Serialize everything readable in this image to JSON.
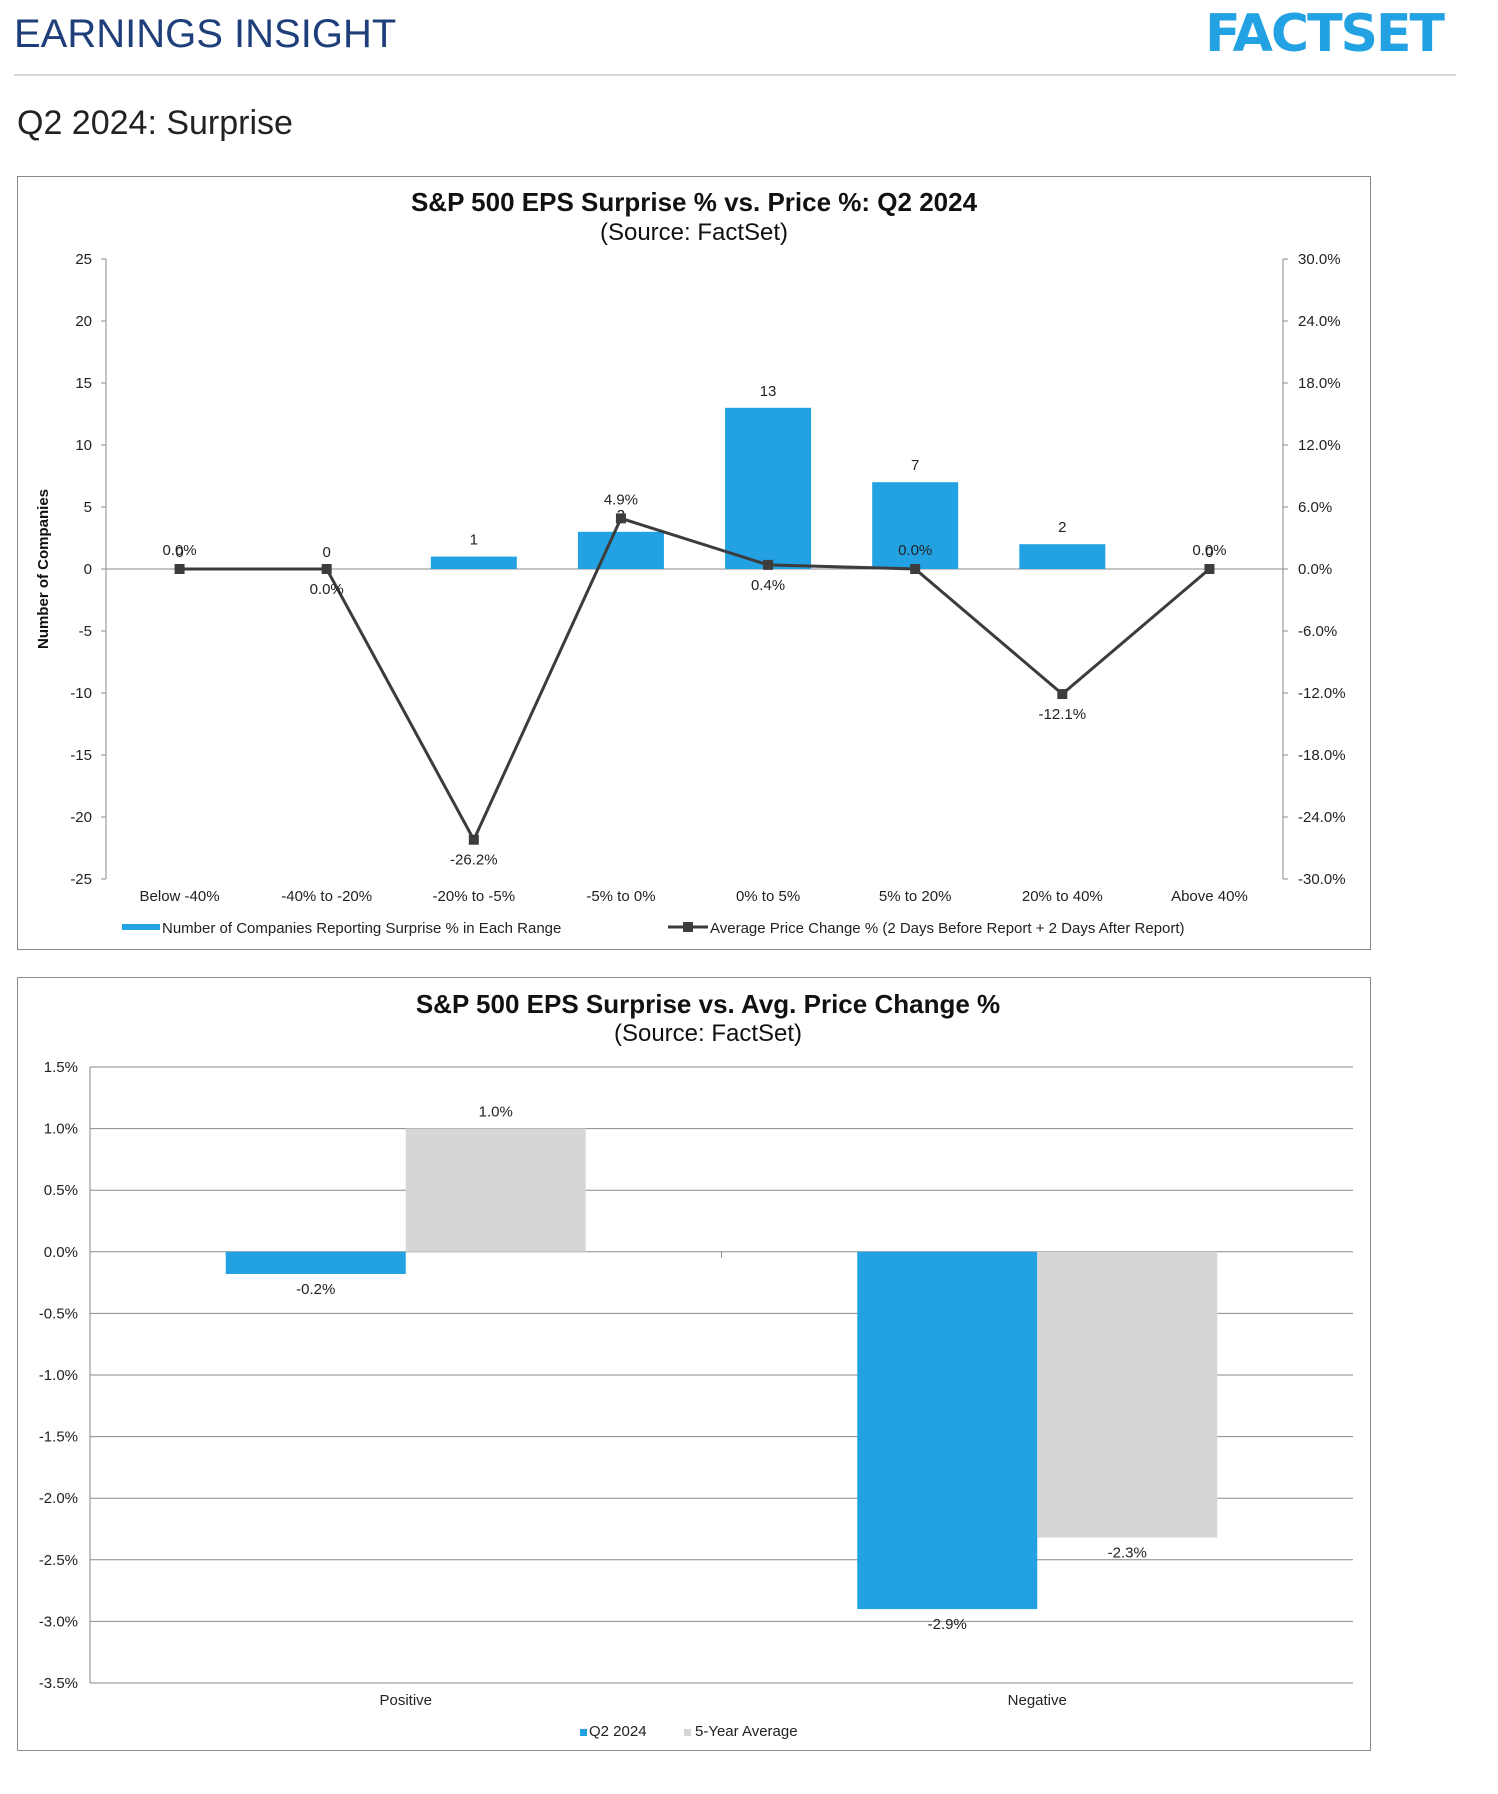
{
  "header": {
    "title": "EARNINGS INSIGHT",
    "brand": "FACTSET",
    "section_title": "Q2 2024: Surprise"
  },
  "colors": {
    "blue": "#22a2e2",
    "gray": "#d6d6d6",
    "line": "#3c3c3c",
    "title_blue": "#1f3f7a"
  },
  "chart_data": [
    {
      "type": "bar",
      "title": "S&P 500 EPS Surprise % vs. Price %: Q2 2024",
      "subtitle": "(Source: FactSet)",
      "ylabel": "Number of Companies",
      "categories": [
        "Below -40%",
        "-40% to -20%",
        "-20% to -5%",
        "-5% to 0%",
        "0% to 5%",
        "5% to 20%",
        "20% to 40%",
        "Above 40%"
      ],
      "ylim": [
        -25,
        25
      ],
      "y_ticks": [
        "25",
        "20",
        "15",
        "10",
        "5",
        "0",
        "-5",
        "-10",
        "-15",
        "-20",
        "-25"
      ],
      "y2lim": [
        -30,
        30
      ],
      "y2_ticks": [
        "30.0%",
        "24.0%",
        "18.0%",
        "12.0%",
        "6.0%",
        "0.0%",
        "-6.0%",
        "-12.0%",
        "-18.0%",
        "-24.0%",
        "-30.0%"
      ],
      "series": [
        {
          "name": "Number of Companies Reporting Surprise % in Each Range",
          "kind": "bar",
          "axis": "left",
          "values": [
            0,
            0,
            1,
            3,
            13,
            7,
            2,
            0
          ],
          "labels": [
            "0",
            "0",
            "1",
            "3",
            "13",
            "7",
            "2",
            "0"
          ]
        },
        {
          "name": "Average Price Change % (2 Days Before Report + 2 Days After Report)",
          "kind": "line",
          "axis": "right",
          "values": [
            0.0,
            0.0,
            -26.2,
            4.9,
            0.4,
            0.0,
            -12.1,
            0.0
          ],
          "labels": [
            "0.0%",
            "0.0%",
            "-26.2%",
            "4.9%",
            "0.4%",
            "0.0%",
            "-12.1%",
            "0.0%"
          ]
        }
      ]
    },
    {
      "type": "bar",
      "title": "S&P 500 EPS Surprise vs. Avg. Price Change %",
      "subtitle": "(Source: FactSet)",
      "categories": [
        "Positive",
        "Negative"
      ],
      "ylim": [
        -3.5,
        1.5
      ],
      "y_ticks": [
        "1.5%",
        "1.0%",
        "0.5%",
        "0.0%",
        "-0.5%",
        "-1.0%",
        "-1.5%",
        "-2.0%",
        "-2.5%",
        "-3.0%",
        "-3.5%"
      ],
      "series": [
        {
          "name": "Q2 2024",
          "values": [
            -0.18,
            -2.9
          ],
          "labels": [
            "-0.2%",
            "-2.9%"
          ]
        },
        {
          "name": "5-Year Average",
          "values": [
            1.0,
            -2.32
          ],
          "labels": [
            "1.0%",
            "-2.3%"
          ]
        }
      ]
    }
  ]
}
